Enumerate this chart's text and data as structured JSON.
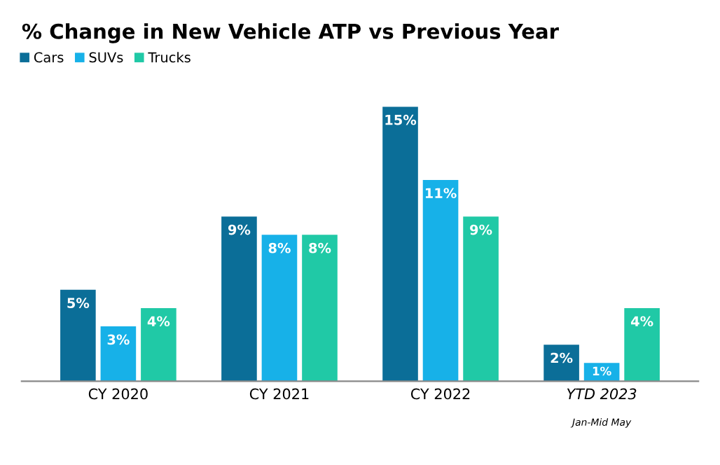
{
  "chart_data": {
    "type": "bar",
    "title": "% Change in New Vehicle ATP vs Previous Year",
    "categories": [
      "CY 2020",
      "CY 2021",
      "CY 2022",
      "YTD 2023"
    ],
    "annotations": [
      "Jan-Mid May"
    ],
    "series": [
      {
        "name": "Cars",
        "color": "#0b6e98",
        "values": [
          5,
          9,
          15,
          2
        ],
        "value_labels": [
          "5%",
          "9%",
          "15%",
          "2%"
        ]
      },
      {
        "name": "SUVs",
        "color": "#17b1e8",
        "values": [
          3,
          8,
          11,
          1
        ],
        "value_labels": [
          "3%",
          "8%",
          "11%",
          "1%"
        ]
      },
      {
        "name": "Trucks",
        "color": "#20c9a6",
        "values": [
          4,
          8,
          9,
          4
        ],
        "value_labels": [
          "4%",
          "8%",
          "9%",
          "4%"
        ]
      }
    ],
    "legend": "top left",
    "grid": false
  }
}
